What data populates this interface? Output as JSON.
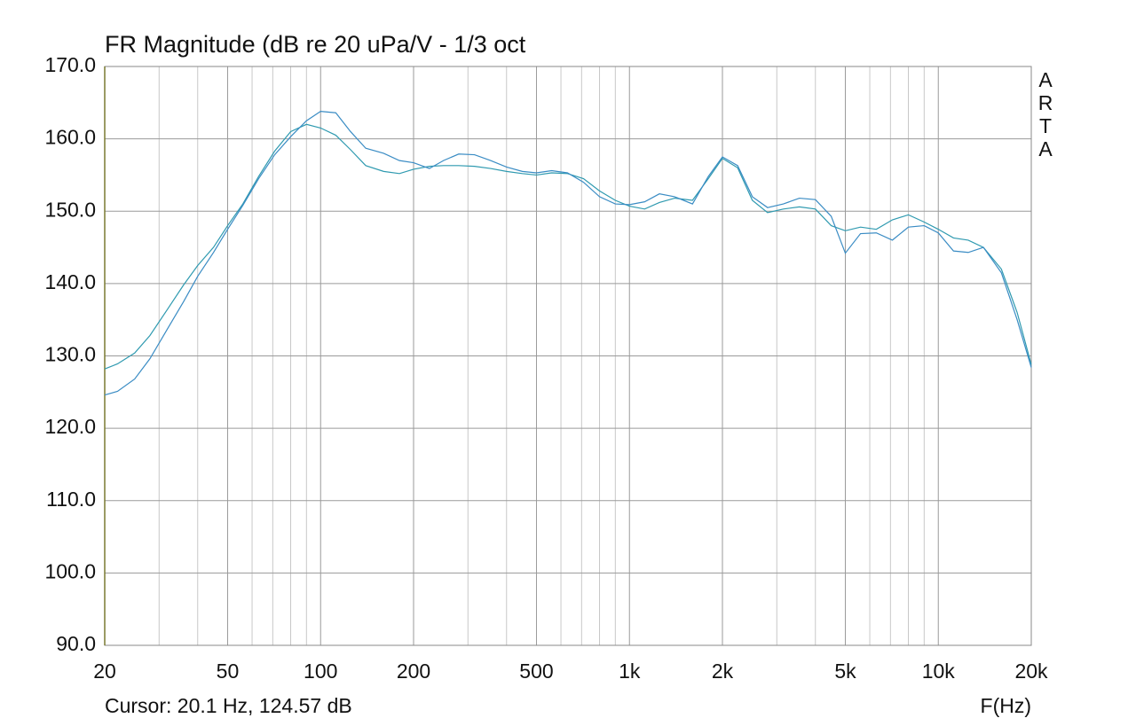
{
  "chart_data": {
    "type": "line",
    "title": "FR Magnitude (dB re 20 uPa/V - 1/3 oct",
    "watermark": "ARTA",
    "cursor_text": "Cursor: 20.1 Hz, 124.57 dB",
    "x_label": "F(Hz)",
    "x_scale": "log",
    "grid": true,
    "x": [
      20,
      22,
      25,
      28,
      32,
      36,
      40,
      45,
      50,
      56,
      63,
      71,
      80,
      90,
      100,
      112,
      125,
      140,
      160,
      180,
      200,
      225,
      250,
      280,
      315,
      355,
      400,
      450,
      500,
      560,
      630,
      710,
      800,
      900,
      1000,
      1120,
      1250,
      1400,
      1600,
      1800,
      2000,
      2240,
      2500,
      2800,
      3150,
      3550,
      4000,
      4500,
      5000,
      5600,
      6300,
      7100,
      8000,
      9000,
      10000,
      11200,
      12500,
      14000,
      16000,
      18000,
      20000
    ],
    "series": [
      {
        "color": "#2f9ab0",
        "values": [
          128.2,
          128.9,
          130.4,
          132.8,
          136.5,
          139.8,
          142.5,
          145.0,
          148.0,
          151.0,
          154.8,
          158.3,
          161.0,
          162.0,
          161.5,
          160.5,
          158.5,
          156.3,
          155.5,
          155.2,
          155.8,
          156.2,
          156.3,
          156.3,
          156.2,
          155.9,
          155.5,
          155.2,
          155.0,
          155.3,
          155.2,
          154.5,
          152.8,
          151.5,
          150.7,
          150.3,
          151.2,
          151.8,
          151.5,
          154.5,
          157.3,
          156.0,
          151.5,
          149.8,
          150.3,
          150.6,
          150.3,
          148.0,
          147.3,
          147.8,
          147.5,
          148.8,
          149.5,
          148.5,
          147.5,
          146.3,
          146.0,
          145.0,
          142.0,
          136.0,
          128.8
        ]
      },
      {
        "color": "#3a8cc4",
        "values": [
          124.6,
          125.1,
          126.8,
          129.6,
          133.8,
          137.5,
          141.0,
          144.3,
          147.5,
          150.8,
          154.5,
          157.8,
          160.3,
          162.5,
          163.8,
          163.6,
          161.0,
          158.7,
          158.0,
          157.0,
          156.7,
          155.9,
          157.0,
          157.9,
          157.8,
          157.0,
          156.1,
          155.5,
          155.3,
          155.6,
          155.3,
          154.0,
          152.0,
          151.0,
          150.9,
          151.3,
          152.4,
          152.0,
          151.0,
          154.8,
          157.5,
          156.3,
          152.0,
          150.5,
          151.0,
          151.8,
          151.6,
          149.3,
          144.2,
          146.9,
          147.0,
          146.0,
          147.8,
          148.0,
          147.0,
          144.5,
          144.3,
          145.0,
          141.5,
          135.0,
          128.4
        ]
      }
    ],
    "xlim": [
      20,
      20000
    ],
    "xticks": [
      20,
      50,
      100,
      200,
      500,
      {
        "value": 1000,
        "label": "1k"
      },
      {
        "value": 2000,
        "label": "2k"
      },
      {
        "value": 5000,
        "label": "5k"
      },
      {
        "value": 10000,
        "label": "10k"
      },
      {
        "value": 20000,
        "label": "20k"
      }
    ],
    "xminorticks": [
      30,
      40,
      60,
      70,
      80,
      90,
      300,
      400,
      600,
      700,
      800,
      900,
      3000,
      4000,
      6000,
      7000,
      8000,
      9000
    ],
    "ylim": [
      90,
      170
    ],
    "yticks": [
      {
        "value": 90,
        "label": "90.0"
      },
      {
        "value": 100,
        "label": "100.0"
      },
      {
        "value": 110,
        "label": "110.0"
      },
      {
        "value": 120,
        "label": "120.0"
      },
      {
        "value": 130,
        "label": "130.0"
      },
      {
        "value": 140,
        "label": "140.0"
      },
      {
        "value": 150,
        "label": "150.0"
      },
      {
        "value": 160,
        "label": "160.0"
      },
      {
        "value": 170,
        "label": "170.0"
      }
    ]
  }
}
